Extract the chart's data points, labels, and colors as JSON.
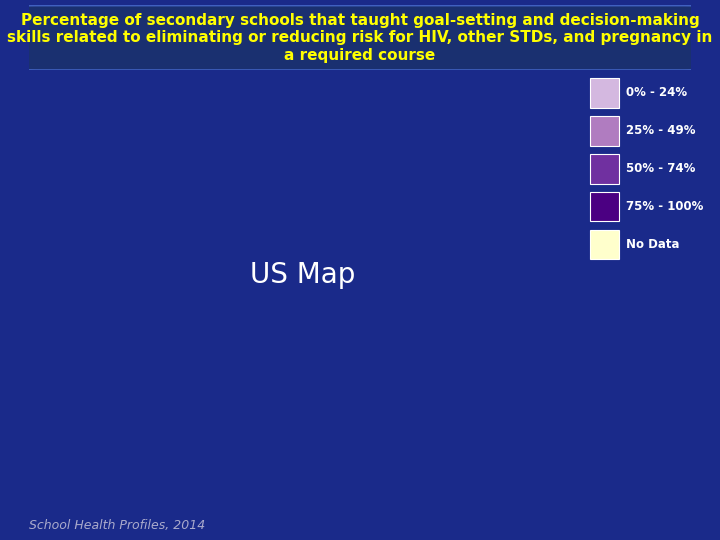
{
  "title_line1": "Percentage of secondary schools that taught goal-setting and decision-making",
  "title_line2": "skills related to eliminating or reducing risk for HIV, other STDs, and pregnancy in",
  "title_line3": "a required course",
  "title_color": "#FFFF00",
  "title_fontsize": 11,
  "background_color": "#1a2a8a",
  "map_background": "#2040b0",
  "legend_labels": [
    "0% - 24%",
    "25% - 49%",
    "50% - 74%",
    "75% - 100%",
    "No Data"
  ],
  "legend_colors": [
    "#d4b8e0",
    "#b07cc0",
    "#7030a0",
    "#4b0082",
    "#ffffcc"
  ],
  "footer": "School Health Profiles, 2014",
  "footer_color": "#aaaacc",
  "state_colors": {
    "AL": "#7030a0",
    "AK": "#7030a0",
    "AZ": "#b07cc0",
    "AR": "#7030a0",
    "CA": "#b07cc0",
    "CO": "#b07cc0",
    "CT": "#7030a0",
    "DE": "#7030a0",
    "FL": "#7030a0",
    "GA": "#7030a0",
    "HI": "#7030a0",
    "ID": "#4b0082",
    "IL": "#7030a0",
    "IN": "#4b0082",
    "IA": "#4b0082",
    "KS": "#b07cc0",
    "KY": "#4b0082",
    "LA": "#7030a0",
    "ME": "#4b0082",
    "MD": "#7030a0",
    "MA": "#4b0082",
    "MI": "#7030a0",
    "MN": "#7030a0",
    "MS": "#7030a0",
    "MO": "#7030a0",
    "MT": "#4b0082",
    "NE": "#b07cc0",
    "NV": "#b07cc0",
    "NH": "#4b0082",
    "NJ": "#4b0082",
    "NM": "#7030a0",
    "NY": "#4b0082",
    "NC": "#7030a0",
    "ND": "#4b0082",
    "OH": "#4b0082",
    "OK": "#7030a0",
    "OR": "#4b0082",
    "PA": "#4b0082",
    "RI": "#4b0082",
    "SC": "#7030a0",
    "SD": "#4b0082",
    "TN": "#7030a0",
    "TX": "#ffffcc",
    "UT": "#b07cc0",
    "VT": "#4b0082",
    "VA": "#7030a0",
    "WA": "#4b0082",
    "WV": "#7030a0",
    "WI": "#4b0082",
    "WY": "#ffffcc",
    "DC": "#4b0082"
  }
}
